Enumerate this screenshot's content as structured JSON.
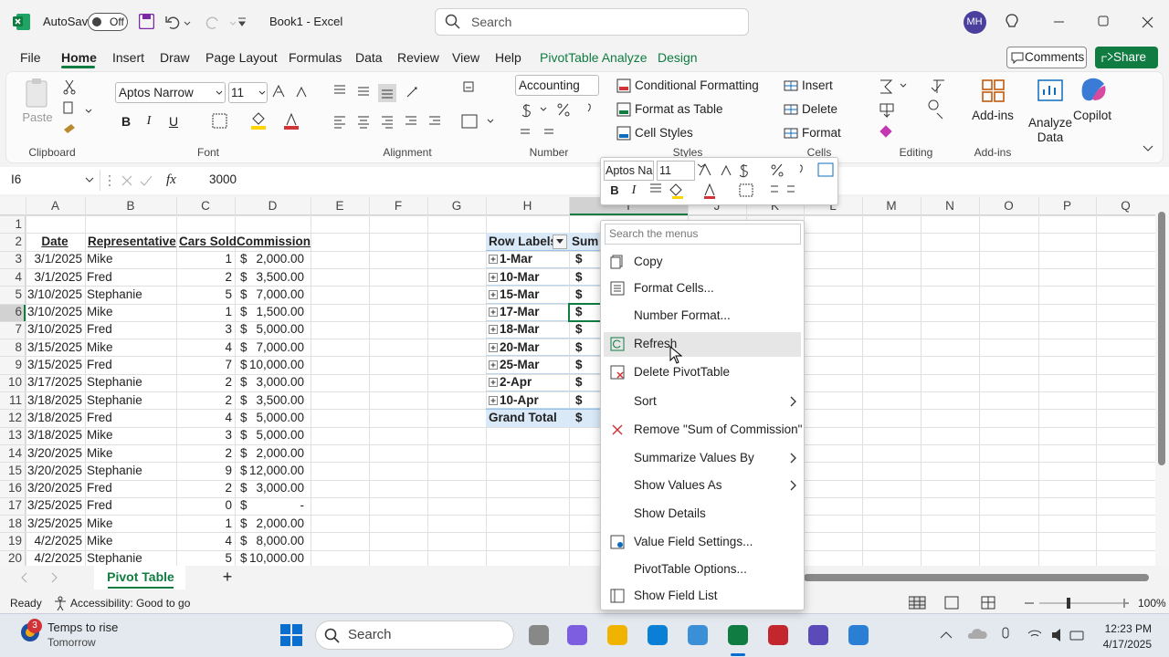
{
  "title_bar": {
    "autosave": "AutoSave",
    "autosave_state": "Off",
    "document": "Book1 - Excel",
    "search": "Search",
    "user": "MH"
  },
  "ribbon_tabs": [
    "File",
    "Home",
    "Insert",
    "Draw",
    "Page Layout",
    "Formulas",
    "Data",
    "Review",
    "View",
    "Help",
    "PivotTable Analyze",
    "Design"
  ],
  "ribbon_actions": {
    "comments": "Comments",
    "share": "Share"
  },
  "ribbon": {
    "clipboard": {
      "paste": "Paste",
      "label": "Clipboard"
    },
    "font": {
      "name": "Aptos Narrow",
      "size": "11",
      "buttons": [
        "B",
        "I",
        "U"
      ],
      "label": "Font"
    },
    "alignment": {
      "label": "Alignment"
    },
    "number": {
      "format": "Accounting",
      "label": "Number"
    },
    "styles": {
      "items": [
        "Conditional Formatting",
        "Format as Table",
        "Cell Styles"
      ],
      "label": "Styles"
    },
    "cells": {
      "items": [
        "Insert",
        "Delete",
        "Format"
      ],
      "label": "Cells"
    },
    "editing": {
      "label": "Editing"
    },
    "addins": {
      "button": "Add-ins",
      "label": "Add-ins"
    },
    "analyze": "Analyze Data",
    "copilot": "Copilot"
  },
  "formula_bar": {
    "name_box": "I6",
    "fx": "fx",
    "formula": "3000"
  },
  "sheet": {
    "columns": [
      "A",
      "B",
      "C",
      "D",
      "E",
      "F",
      "G",
      "H",
      "I",
      "J",
      "K",
      "L",
      "M",
      "N",
      "O",
      "P",
      "Q"
    ],
    "rows": [
      "1",
      "2",
      "3",
      "4",
      "5",
      "6",
      "7",
      "8",
      "9",
      "10",
      "11",
      "12",
      "13",
      "14",
      "15",
      "16",
      "17",
      "18",
      "19",
      "20"
    ],
    "headers": [
      "Date",
      "Representative",
      "Cars Sold",
      "Commission"
    ],
    "records": [
      [
        "3/1/2025",
        "Mike",
        "1",
        "$",
        "2,000.00"
      ],
      [
        "3/1/2025",
        "Fred",
        "2",
        "$",
        "3,500.00"
      ],
      [
        "3/10/2025",
        "Stephanie",
        "5",
        "$",
        "7,000.00"
      ],
      [
        "3/10/2025",
        "Mike",
        "1",
        "$",
        "1,500.00"
      ],
      [
        "3/10/2025",
        "Fred",
        "3",
        "$",
        "5,000.00"
      ],
      [
        "3/15/2025",
        "Mike",
        "4",
        "$",
        "7,000.00"
      ],
      [
        "3/15/2025",
        "Fred",
        "7",
        "$",
        "10,000.00"
      ],
      [
        "3/17/2025",
        "Stephanie",
        "2",
        "$",
        "3,000.00"
      ],
      [
        "3/18/2025",
        "Stephanie",
        "2",
        "$",
        "3,500.00"
      ],
      [
        "3/18/2025",
        "Fred",
        "4",
        "$",
        "5,000.00"
      ],
      [
        "3/18/2025",
        "Mike",
        "3",
        "$",
        "5,000.00"
      ],
      [
        "3/20/2025",
        "Mike",
        "2",
        "$",
        "2,000.00"
      ],
      [
        "3/20/2025",
        "Stephanie",
        "9",
        "$",
        "12,000.00"
      ],
      [
        "3/20/2025",
        "Fred",
        "2",
        "$",
        "3,000.00"
      ],
      [
        "3/25/2025",
        "Fred",
        "0",
        "$",
        "-"
      ],
      [
        "3/25/2025",
        "Mike",
        "1",
        "$",
        "2,000.00"
      ],
      [
        "4/2/2025",
        "Mike",
        "4",
        "$",
        "8,000.00"
      ],
      [
        "4/2/2025",
        "Stephanie",
        "5",
        "$",
        "10,000.00"
      ]
    ]
  },
  "pivot": {
    "header": [
      "Row Labels",
      "Sum"
    ],
    "rows": [
      [
        "1-Mar",
        "$"
      ],
      [
        "10-Mar",
        "$"
      ],
      [
        "15-Mar",
        "$"
      ],
      [
        "17-Mar",
        "$"
      ],
      [
        "18-Mar",
        "$"
      ],
      [
        "20-Mar",
        "$"
      ],
      [
        "25-Mar",
        "$"
      ],
      [
        "2-Apr",
        "$"
      ],
      [
        "10-Apr",
        "$"
      ]
    ],
    "grand_total": [
      "Grand Total",
      "$"
    ]
  },
  "mini_toolbar": {
    "font": "Aptos Na",
    "size": "11",
    "buttons": [
      "B",
      "I"
    ]
  },
  "context_menu": {
    "search": "Search the menus",
    "items": [
      "Copy",
      "Format Cells...",
      "Number Format...",
      "Refresh",
      "Delete PivotTable",
      "Sort",
      "Remove \"Sum of Commission\"",
      "Summarize Values By",
      "Show Values As",
      "Show Details",
      "Value Field Settings...",
      "PivotTable Options...",
      "Show Field List"
    ]
  },
  "sheet_tabs": {
    "active": "Pivot Table",
    "add": "+"
  },
  "status_bar": {
    "state": "Ready",
    "accessibility": "Accessibility: Good to go",
    "zoom": "100%"
  },
  "taskbar": {
    "weather_badge": "3",
    "weather": "Temps to rise",
    "weather_sub": "Tomorrow",
    "search": "Search",
    "time": "12:23 PM",
    "date": "4/17/2025"
  }
}
